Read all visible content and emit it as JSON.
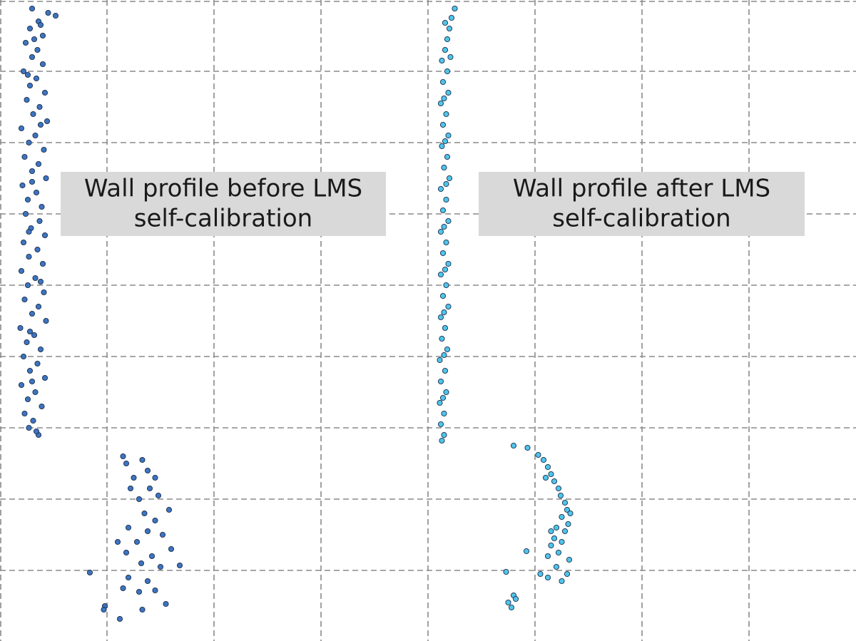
{
  "chart_data": {
    "type": "scatter",
    "xlim": [
      0,
      8
    ],
    "ylim": [
      0,
      9
    ],
    "xticks": [
      1,
      2,
      3,
      4,
      5,
      6,
      7
    ],
    "yticks": [
      1,
      2,
      3,
      4,
      5,
      6,
      7,
      8
    ],
    "grid": true,
    "series": [
      {
        "color": "#3d74c0",
        "x": [
          0.3,
          0.45,
          0.52,
          0.36,
          0.28,
          0.4,
          0.24,
          0.35,
          0.3,
          0.4,
          0.22,
          0.34,
          0.28,
          0.42,
          0.25,
          0.37,
          0.31,
          0.44,
          0.2,
          0.33,
          0.27,
          0.41,
          0.23,
          0.36,
          0.3,
          0.43,
          0.21,
          0.34,
          0.26,
          0.39,
          0.24,
          0.37,
          0.29,
          0.42,
          0.22,
          0.35,
          0.27,
          0.4,
          0.2,
          0.33,
          0.26,
          0.41,
          0.23,
          0.36,
          0.3,
          0.43,
          0.19,
          0.32,
          0.25,
          0.38,
          0.22,
          0.35,
          0.28,
          0.42,
          0.2,
          0.33,
          0.26,
          0.39,
          0.23,
          0.31,
          0.27,
          0.36,
          0.38,
          0.32,
          0.26,
          0.38,
          0.3,
          0.27,
          0.38,
          0.28,
          0.3,
          0.34,
          1.15,
          1.33,
          1.38,
          1.18,
          1.25,
          1.45,
          1.22,
          1.4,
          1.48,
          1.3,
          1.58,
          1.35,
          1.45,
          1.2,
          1.38,
          1.52,
          1.1,
          1.28,
          1.6,
          1.18,
          1.42,
          1.32,
          1.5,
          1.68,
          1.2,
          1.38,
          1.15,
          1.3,
          1.45,
          1.55,
          0.98,
          1.33,
          0.84,
          0.97,
          1.12
        ],
        "values": [
          8.88,
          8.82,
          8.78,
          8.7,
          8.6,
          8.5,
          8.4,
          8.3,
          8.2,
          8.1,
          8.0,
          7.9,
          7.8,
          7.7,
          7.6,
          7.5,
          7.4,
          7.3,
          7.2,
          7.1,
          7.0,
          6.9,
          6.8,
          6.7,
          6.6,
          6.5,
          6.4,
          6.3,
          6.2,
          6.1,
          6.0,
          5.9,
          5.8,
          5.7,
          5.6,
          5.5,
          5.4,
          5.3,
          5.2,
          5.1,
          5.0,
          4.9,
          4.8,
          4.7,
          4.6,
          4.5,
          4.4,
          4.3,
          4.2,
          4.1,
          4.0,
          3.9,
          3.8,
          3.7,
          3.6,
          3.5,
          3.4,
          3.3,
          3.2,
          3.1,
          3.0,
          2.9,
          8.65,
          8.45,
          7.95,
          7.25,
          6.45,
          5.75,
          5.05,
          4.35,
          3.65,
          2.95,
          2.6,
          2.55,
          2.4,
          2.5,
          2.3,
          2.3,
          2.15,
          2.15,
          2.05,
          2.0,
          1.85,
          1.8,
          1.7,
          1.6,
          1.55,
          1.5,
          1.4,
          1.4,
          1.3,
          1.25,
          1.2,
          1.1,
          1.05,
          1.07,
          0.9,
          0.85,
          0.75,
          0.7,
          0.72,
          0.53,
          0.5,
          0.45,
          0.97,
          0.45,
          0.32
        ]
      },
      {
        "color": "#4ec5ea",
        "x": [
          4.25,
          4.22,
          4.2,
          4.18,
          4.16,
          4.13,
          4.18,
          4.14,
          4.19,
          4.12,
          4.17,
          4.14,
          4.19,
          4.13,
          4.18,
          4.15,
          4.2,
          4.12,
          4.17,
          4.14,
          4.19,
          4.12,
          4.17,
          4.14,
          4.19,
          4.12,
          4.17,
          4.14,
          4.19,
          4.12,
          4.16,
          4.13,
          4.18,
          4.11,
          4.16,
          4.12,
          4.17,
          4.11,
          4.15,
          4.12,
          4.15,
          4.13,
          4.16,
          4.21,
          4.15,
          4.16,
          4.17,
          4.15,
          4.16,
          4.15,
          4.15,
          4.14,
          4.8,
          4.93,
          5.03,
          5.08,
          5.12,
          5.15,
          5.18,
          5.22,
          5.24,
          5.28,
          5.3,
          5.33,
          5.25,
          5.31,
          5.2,
          5.28,
          5.18,
          5.25,
          5.15,
          5.22,
          5.32,
          5.12,
          5.2,
          5.3,
          5.12,
          5.25,
          4.92,
          4.73,
          4.8,
          4.75,
          4.78,
          4.82,
          5.05,
          5.15,
          5.1
        ],
        "values": [
          8.88,
          8.75,
          8.6,
          8.45,
          8.3,
          8.15,
          8.0,
          7.85,
          7.7,
          7.55,
          7.4,
          7.25,
          7.1,
          6.95,
          6.8,
          6.65,
          6.5,
          6.35,
          6.2,
          6.05,
          5.9,
          5.75,
          5.6,
          5.45,
          5.3,
          5.15,
          5.0,
          4.85,
          4.7,
          4.55,
          4.4,
          4.25,
          4.1,
          3.95,
          3.8,
          3.65,
          3.5,
          3.35,
          3.2,
          3.05,
          2.9,
          2.82,
          8.68,
          8.2,
          7.62,
          7.02,
          6.42,
          5.82,
          5.22,
          4.62,
          4.02,
          3.42,
          2.75,
          2.72,
          2.62,
          2.55,
          2.45,
          2.35,
          2.25,
          2.15,
          2.05,
          1.95,
          1.85,
          1.8,
          1.75,
          1.65,
          1.6,
          1.55,
          1.45,
          1.4,
          1.35,
          1.25,
          1.15,
          1.2,
          1.05,
          0.95,
          0.9,
          0.85,
          1.27,
          0.98,
          0.65,
          0.55,
          0.48,
          0.6,
          0.95,
          1.55,
          2.3
        ]
      }
    ],
    "annotations": [
      {
        "lines": [
          "Wall profile before LMS",
          "self-calibration"
        ]
      },
      {
        "lines": [
          "Wall profile after LMS",
          "self-calibration"
        ]
      }
    ]
  }
}
